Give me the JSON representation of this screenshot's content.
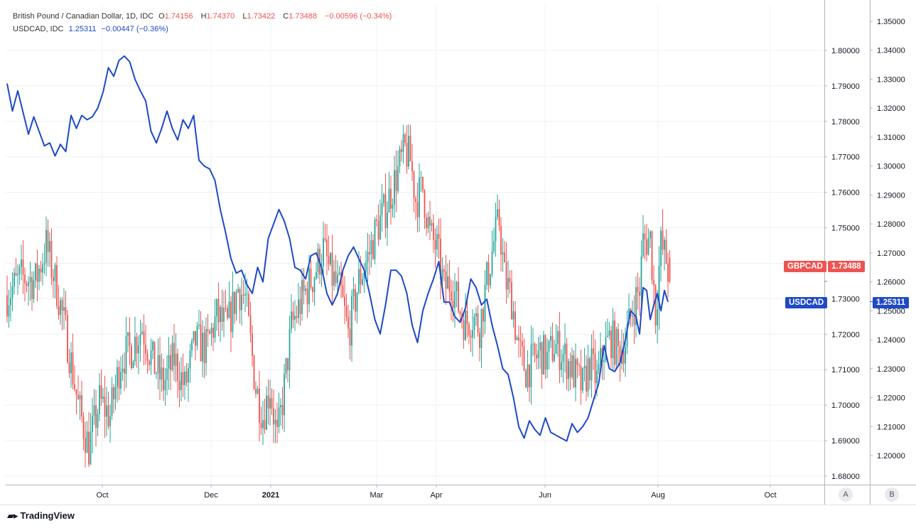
{
  "legend": {
    "gbpcad": {
      "name": "British Pound / Canadian Dollar, 1D, IDC",
      "open_label": "O",
      "open": "1.74156",
      "high_label": "H",
      "high": "1.74370",
      "low_label": "L",
      "low": "1.73422",
      "close_label": "C",
      "close": "1.73488",
      "change": "−0.00596 (−0.34%)"
    },
    "usdcad": {
      "name": "USDCAD, IDC",
      "value": "1.25311",
      "change": "−0.00447 (−0.36%)"
    }
  },
  "tags": {
    "gbpcad_name": "GBPCAD",
    "gbpcad_value": "1.73488",
    "usdcad_name": "USDCAD",
    "usdcad_value": "1.25311"
  },
  "scale_buttons": {
    "a": "A",
    "b": "B"
  },
  "branding": "TradingView",
  "colors": {
    "up": "#26a69a",
    "down": "#ef5350",
    "line": "#1e49c8",
    "grid": "#eef0f3"
  },
  "chart_data": {
    "type": "line",
    "x_ticks": [
      {
        "label": "Oct",
        "bold": false
      },
      {
        "label": "Dec",
        "bold": false
      },
      {
        "label": "2021",
        "bold": true
      },
      {
        "label": "Mar",
        "bold": false
      },
      {
        "label": "Apr",
        "bold": false
      },
      {
        "label": "Jun",
        "bold": false
      },
      {
        "label": "Aug",
        "bold": false
      },
      {
        "label": "Oct",
        "bold": false
      }
    ],
    "left_axis": {
      "ylim": [
        1.6775,
        1.8035
      ],
      "ticks": [
        "1.68000",
        "1.69000",
        "1.70000",
        "1.71000",
        "1.72000",
        "1.73000",
        "1.74000",
        "1.75000",
        "1.76000",
        "1.77000",
        "1.78000",
        "1.79000",
        "1.80000"
      ]
    },
    "right_axis": {
      "ylim": [
        1.1852,
        1.3544
      ],
      "ticks": [
        "1.20000",
        "1.21000",
        "1.22000",
        "1.23000",
        "1.24000",
        "1.25000",
        "1.26000",
        "1.27000",
        "1.28000",
        "1.29000",
        "1.30000",
        "1.31000",
        "1.32000",
        "1.33000",
        "1.34000",
        "1.35000"
      ]
    },
    "series": [
      {
        "name": "GBPCAD",
        "kind": "candles",
        "axis": "left",
        "period": "1D",
        "anchors": [
          [
            0,
            1.731
          ],
          [
            8,
            1.736
          ],
          [
            16,
            1.735
          ],
          [
            22,
            1.745
          ],
          [
            28,
            1.733
          ],
          [
            34,
            1.718
          ],
          [
            40,
            1.7
          ],
          [
            46,
            1.688
          ],
          [
            52,
            1.701
          ],
          [
            58,
            1.697
          ],
          [
            64,
            1.713
          ],
          [
            70,
            1.716
          ],
          [
            76,
            1.722
          ],
          [
            82,
            1.712
          ],
          [
            88,
            1.706
          ],
          [
            94,
            1.713
          ],
          [
            100,
            1.705
          ],
          [
            106,
            1.718
          ],
          [
            112,
            1.716
          ],
          [
            118,
            1.725
          ],
          [
            124,
            1.722
          ],
          [
            130,
            1.733
          ],
          [
            134,
            1.73
          ],
          [
            140,
            1.705
          ],
          [
            144,
            1.697
          ],
          [
            148,
            1.705
          ],
          [
            152,
            1.69
          ],
          [
            156,
            1.705
          ],
          [
            160,
            1.722
          ],
          [
            166,
            1.73
          ],
          [
            172,
            1.736
          ],
          [
            178,
            1.744
          ],
          [
            182,
            1.737
          ],
          [
            188,
            1.731
          ],
          [
            192,
            1.72
          ],
          [
            198,
            1.735
          ],
          [
            204,
            1.743
          ],
          [
            208,
            1.75
          ],
          [
            212,
            1.754
          ],
          [
            216,
            1.76
          ],
          [
            220,
            1.766
          ],
          [
            224,
            1.772
          ],
          [
            227,
            1.769
          ],
          [
            230,
            1.758
          ],
          [
            234,
            1.761
          ],
          [
            238,
            1.748
          ],
          [
            242,
            1.744
          ],
          [
            246,
            1.733
          ],
          [
            250,
            1.735
          ],
          [
            254,
            1.728
          ],
          [
            258,
            1.723
          ],
          [
            262,
            1.725
          ],
          [
            266,
            1.722
          ],
          [
            270,
            1.735
          ],
          [
            274,
            1.746
          ],
          [
            277,
            1.752
          ],
          [
            280,
            1.736
          ],
          [
            284,
            1.73
          ],
          [
            288,
            1.715
          ],
          [
            292,
            1.71
          ],
          [
            296,
            1.712
          ],
          [
            300,
            1.715
          ],
          [
            304,
            1.713
          ],
          [
            308,
            1.717
          ],
          [
            312,
            1.715
          ],
          [
            316,
            1.712
          ],
          [
            320,
            1.708
          ],
          [
            324,
            1.705
          ],
          [
            328,
            1.712
          ],
          [
            332,
            1.707
          ],
          [
            336,
            1.716
          ],
          [
            340,
            1.719
          ],
          [
            344,
            1.715
          ],
          [
            348,
            1.718
          ],
          [
            352,
            1.727
          ],
          [
            356,
            1.733
          ],
          [
            358,
            1.746
          ],
          [
            362,
            1.747
          ],
          [
            365,
            1.726
          ],
          [
            368,
            1.745
          ],
          [
            371,
            1.741
          ],
          [
            373,
            1.735
          ]
        ],
        "candles_drawn": 373
      },
      {
        "name": "USDCAD",
        "kind": "line",
        "axis": "right",
        "anchors": [
          [
            0,
            1.3285
          ],
          [
            3,
            1.319
          ],
          [
            6,
            1.326
          ],
          [
            9,
            1.3185
          ],
          [
            12,
            1.311
          ],
          [
            15,
            1.317
          ],
          [
            18,
            1.312
          ],
          [
            21,
            1.307
          ],
          [
            24,
            1.308
          ],
          [
            27,
            1.3035
          ],
          [
            30,
            1.3075
          ],
          [
            33,
            1.305
          ],
          [
            36,
            1.3175
          ],
          [
            39,
            1.313
          ],
          [
            42,
            1.3175
          ],
          [
            45,
            1.316
          ],
          [
            48,
            1.317
          ],
          [
            51,
            1.32
          ],
          [
            54,
            1.3255
          ],
          [
            57,
            1.334
          ],
          [
            60,
            1.331
          ],
          [
            63,
            1.3365
          ],
          [
            66,
            1.338
          ],
          [
            69,
            1.336
          ],
          [
            72,
            1.33
          ],
          [
            75,
            1.326
          ],
          [
            78,
            1.3225
          ],
          [
            81,
            1.312
          ],
          [
            84,
            1.308
          ],
          [
            87,
            1.313
          ],
          [
            90,
            1.319
          ],
          [
            93,
            1.313
          ],
          [
            96,
            1.309
          ],
          [
            99,
            1.316
          ],
          [
            102,
            1.313
          ],
          [
            105,
            1.3175
          ],
          [
            108,
            1.302
          ],
          [
            111,
            1.3
          ],
          [
            114,
            1.299
          ],
          [
            117,
            1.295
          ],
          [
            120,
            1.285
          ],
          [
            123,
            1.277
          ],
          [
            126,
            1.268
          ],
          [
            129,
            1.263
          ],
          [
            132,
            1.264
          ],
          [
            135,
            1.259
          ],
          [
            138,
            1.256
          ],
          [
            141,
            1.265
          ],
          [
            144,
            1.26
          ],
          [
            147,
            1.275
          ],
          [
            150,
            1.28
          ],
          [
            153,
            1.285
          ],
          [
            156,
            1.281
          ],
          [
            159,
            1.275
          ],
          [
            162,
            1.265
          ],
          [
            165,
            1.264
          ],
          [
            168,
            1.261
          ],
          [
            171,
            1.269
          ],
          [
            174,
            1.27
          ],
          [
            177,
            1.265
          ],
          [
            180,
            1.256
          ],
          [
            183,
            1.252
          ],
          [
            186,
            1.256
          ],
          [
            189,
            1.264
          ],
          [
            192,
            1.269
          ],
          [
            195,
            1.272
          ],
          [
            198,
            1.268
          ],
          [
            201,
            1.264
          ],
          [
            204,
            1.256
          ],
          [
            207,
            1.247
          ],
          [
            210,
            1.242
          ],
          [
            213,
            1.252
          ],
          [
            216,
            1.264
          ],
          [
            219,
            1.264
          ],
          [
            222,
            1.262
          ],
          [
            225,
            1.256
          ],
          [
            228,
            1.245
          ],
          [
            231,
            1.239
          ],
          [
            234,
            1.25
          ],
          [
            237,
            1.256
          ],
          [
            240,
            1.261
          ],
          [
            243,
            1.267
          ],
          [
            246,
            1.253
          ],
          [
            249,
            1.253
          ],
          [
            252,
            1.248
          ],
          [
            255,
            1.246
          ],
          [
            258,
            1.251
          ],
          [
            261,
            1.261
          ],
          [
            264,
            1.258
          ],
          [
            267,
            1.252
          ],
          [
            270,
            1.254
          ],
          [
            273,
            1.245
          ],
          [
            276,
            1.238
          ],
          [
            279,
            1.23
          ],
          [
            282,
            1.228
          ],
          [
            285,
            1.22
          ],
          [
            288,
            1.21
          ],
          [
            291,
            1.206
          ],
          [
            294,
            1.212
          ],
          [
            297,
            1.209
          ],
          [
            300,
            1.207
          ],
          [
            303,
            1.213
          ],
          [
            306,
            1.208
          ],
          [
            309,
            1.207
          ],
          [
            312,
            1.206
          ],
          [
            315,
            1.205
          ],
          [
            318,
            1.211
          ],
          [
            321,
            1.208
          ],
          [
            324,
            1.21
          ],
          [
            327,
            1.213
          ],
          [
            330,
            1.219
          ],
          [
            333,
            1.225
          ],
          [
            336,
            1.238
          ],
          [
            339,
            1.23
          ],
          [
            342,
            1.229
          ],
          [
            345,
            1.232
          ],
          [
            348,
            1.24
          ],
          [
            351,
            1.25
          ],
          [
            354,
            1.248
          ],
          [
            356,
            1.242
          ],
          [
            358,
            1.258
          ],
          [
            360,
            1.257
          ],
          [
            362,
            1.247
          ],
          [
            364,
            1.252
          ],
          [
            366,
            1.256
          ],
          [
            368,
            1.25
          ],
          [
            370,
            1.257
          ],
          [
            372,
            1.2531
          ]
        ]
      }
    ]
  }
}
